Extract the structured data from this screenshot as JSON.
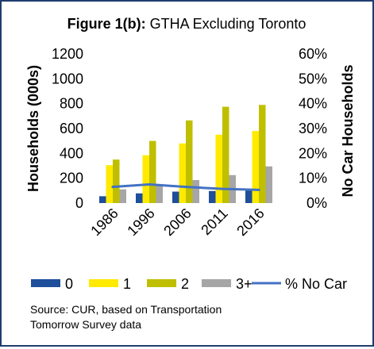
{
  "title": {
    "bold_part": "Figure 1(b):",
    "rest": " GTHA  Excluding Toronto"
  },
  "chart_data": {
    "type": "bar",
    "categories": [
      "1986",
      "1996",
      "2006",
      "2011",
      "2016"
    ],
    "series": [
      {
        "name": "0",
        "kind": "bar",
        "axis": "left",
        "color": "#1f4e9a",
        "values": [
          55,
          78,
          92,
          97,
          100
        ]
      },
      {
        "name": "1",
        "kind": "bar",
        "axis": "left",
        "color": "#ffea00",
        "values": [
          305,
          385,
          480,
          550,
          580
        ]
      },
      {
        "name": "2",
        "kind": "bar",
        "axis": "left",
        "color": "#bfbf00",
        "values": [
          350,
          500,
          665,
          775,
          790
        ]
      },
      {
        "name": "3+",
        "kind": "bar",
        "axis": "left",
        "color": "#a6a6a6",
        "values": [
          110,
          140,
          185,
          225,
          295
        ]
      },
      {
        "name": "% No Car",
        "kind": "line",
        "axis": "right",
        "color": "#4472c4",
        "values": [
          6.5,
          7.5,
          6.5,
          5.7,
          5.3
        ]
      }
    ],
    "ylabel": "Households (000s)",
    "y2label": "No Car Households",
    "ylim": [
      0,
      1200
    ],
    "yticks": [
      0,
      200,
      400,
      600,
      800,
      1000,
      1200
    ],
    "y2lim": [
      0,
      60
    ],
    "y2ticks": [
      "0%",
      "10%",
      "20%",
      "30%",
      "40%",
      "50%",
      "60%"
    ],
    "grid": false,
    "legend_position": "bottom"
  },
  "source": {
    "line1": "Source: CUR, based on Transportation",
    "line2": "Tomorrow Survey data"
  }
}
